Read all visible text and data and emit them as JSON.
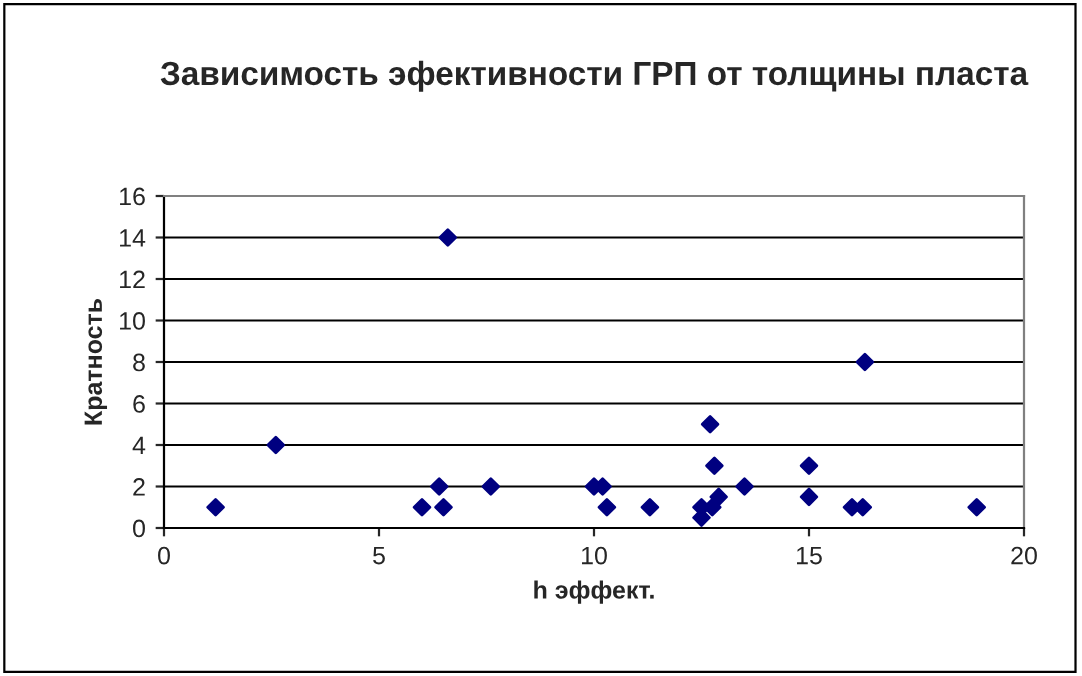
{
  "chart_data": {
    "type": "scatter",
    "title": "Зависимость эфективности ГРП от толщины пласта",
    "xlabel": "h эффект.",
    "ylabel": "Кратность",
    "series": [
      {
        "color": "#000080",
        "x": [
          1.2,
          2.6,
          6.0,
          6.4,
          6.5,
          6.6,
          7.6,
          10.0,
          10.2,
          10.3,
          11.3,
          12.5,
          12.5,
          12.75,
          12.7,
          12.8,
          12.9,
          13.5,
          15.0,
          15.0,
          16.0,
          16.25,
          16.3,
          18.9
        ],
        "values": [
          1,
          4,
          1,
          2,
          1,
          14,
          2,
          2,
          2,
          1,
          1,
          0.5,
          1,
          1,
          5,
          3,
          1.5,
          2,
          3,
          1.5,
          1,
          1,
          8,
          1
        ]
      }
    ],
    "xlim": [
      0,
      20
    ],
    "xticks": [
      0,
      5,
      10,
      15,
      20
    ],
    "ylim": [
      0,
      16
    ],
    "yticks": [
      0,
      2,
      4,
      6,
      8,
      10,
      12,
      14,
      16
    ],
    "grid": "y",
    "marker": "diamond",
    "legend": false
  }
}
